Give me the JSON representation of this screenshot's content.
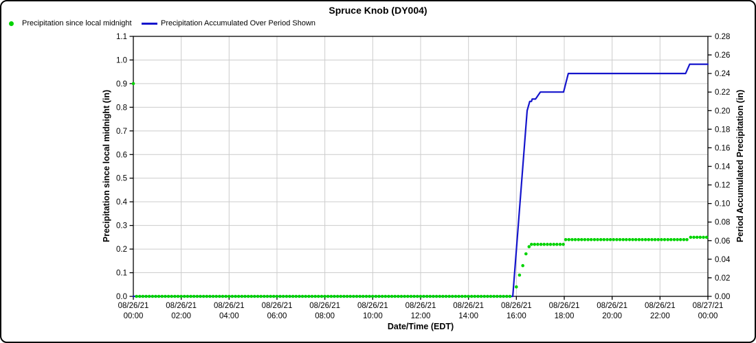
{
  "legend": [
    {
      "label": "Precipitation since local midnight",
      "marker": "dot",
      "color": "#00D300"
    },
    {
      "label": "Precipitation Accumulated Over Period Shown",
      "marker": "line",
      "color": "#1414CC"
    }
  ],
  "chart_data": {
    "type": "line",
    "title": "Spruce Knob (DY004)",
    "xlabel": "Date/Time (EDT)",
    "grid": true,
    "x_axis": {
      "range_hours": [
        0,
        24
      ],
      "ticks": [
        {
          "hour": 0,
          "date": "08/26/21",
          "time": "00:00"
        },
        {
          "hour": 2,
          "date": "08/26/21",
          "time": "02:00"
        },
        {
          "hour": 4,
          "date": "08/26/21",
          "time": "04:00"
        },
        {
          "hour": 6,
          "date": "08/26/21",
          "time": "06:00"
        },
        {
          "hour": 8,
          "date": "08/26/21",
          "time": "08:00"
        },
        {
          "hour": 10,
          "date": "08/26/21",
          "time": "10:00"
        },
        {
          "hour": 12,
          "date": "08/26/21",
          "time": "12:00"
        },
        {
          "hour": 14,
          "date": "08/26/21",
          "time": "14:00"
        },
        {
          "hour": 16,
          "date": "08/26/21",
          "time": "16:00"
        },
        {
          "hour": 18,
          "date": "08/26/21",
          "time": "18:00"
        },
        {
          "hour": 20,
          "date": "08/26/21",
          "time": "20:00"
        },
        {
          "hour": 22,
          "date": "08/26/21",
          "time": "22:00"
        },
        {
          "hour": 24,
          "date": "08/27/21",
          "time": "00:00"
        }
      ]
    },
    "left_axis": {
      "label": "Precipitation since local midnight (in)",
      "min": 0.0,
      "max": 1.1,
      "tick_step": 0.1,
      "decimals": 1
    },
    "right_axis": {
      "label": "Period Accumulated Precipitation (in)",
      "min": 0.0,
      "max": 0.28,
      "tick_step": 0.02,
      "decimals": 2
    },
    "series": [
      {
        "name": "Precipitation since local midnight",
        "type": "scatter",
        "axis": "left",
        "color": "#00D300",
        "unit": "in",
        "segments": [
          {
            "start": 0.0,
            "end": 0.0,
            "step": 1,
            "value": 0.9
          },
          {
            "start": 0.1333,
            "end": 15.78,
            "step": 0.1333,
            "value": 0.0
          },
          {
            "start": 16.0,
            "end": 16.0,
            "step": 1,
            "value": 0.04
          },
          {
            "start": 16.13,
            "end": 16.13,
            "step": 1,
            "value": 0.09
          },
          {
            "start": 16.27,
            "end": 16.27,
            "step": 1,
            "value": 0.13
          },
          {
            "start": 16.4,
            "end": 16.4,
            "step": 1,
            "value": 0.18
          },
          {
            "start": 16.53,
            "end": 16.53,
            "step": 1,
            "value": 0.21
          },
          {
            "start": 16.63,
            "end": 16.63,
            "step": 1,
            "value": 0.22
          },
          {
            "start": 16.76,
            "end": 17.97,
            "step": 0.1333,
            "value": 0.22
          },
          {
            "start": 18.06,
            "end": 23.17,
            "step": 0.1333,
            "value": 0.24
          },
          {
            "start": 23.28,
            "end": 23.96,
            "step": 0.1333,
            "value": 0.25
          }
        ]
      },
      {
        "name": "Precipitation Accumulated Over Period Shown",
        "type": "line",
        "axis": "right",
        "color": "#1414CC",
        "unit": "in",
        "points": [
          [
            0,
            0.0
          ],
          [
            15.85,
            0.0
          ],
          [
            16.45,
            0.2
          ],
          [
            16.56,
            0.21
          ],
          [
            16.63,
            0.21
          ],
          [
            16.66,
            0.2125
          ],
          [
            16.8,
            0.2125
          ],
          [
            17.0,
            0.22
          ],
          [
            17.97,
            0.22
          ],
          [
            18.17,
            0.24
          ],
          [
            23.07,
            0.24
          ],
          [
            23.24,
            0.25
          ],
          [
            24,
            0.25
          ]
        ]
      }
    ]
  }
}
